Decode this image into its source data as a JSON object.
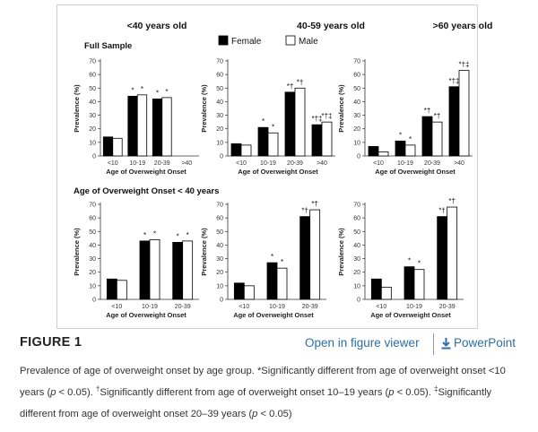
{
  "legend": [
    {
      "name": "Female",
      "color": "#000000"
    },
    {
      "name": "Male",
      "color": "#ffffff"
    }
  ],
  "row_titles": [
    "Full Sample",
    "Age of Overweight Onset < 40 years"
  ],
  "column_titles": [
    "<40 years old",
    "40-59 years old",
    ">60 years old"
  ],
  "chart_data": [
    {
      "type": "bar",
      "row": 0,
      "col": 0,
      "ylabel": "Prevalence (%)",
      "xlabel": "Age of Overweight Onset",
      "ylim": [
        0,
        70
      ],
      "yticks": [
        0,
        10,
        20,
        30,
        40,
        50,
        60,
        70
      ],
      "categories": [
        "<10",
        "10-19",
        "20-39",
        ">40"
      ],
      "series": [
        {
          "name": "Female",
          "values": [
            14,
            44,
            42,
            null
          ]
        },
        {
          "name": "Male",
          "values": [
            13,
            45,
            43,
            null
          ]
        }
      ],
      "annotations": [
        [
          "",
          ""
        ],
        [
          "*",
          "*"
        ],
        [
          "*",
          "*"
        ],
        [
          "",
          ""
        ]
      ]
    },
    {
      "type": "bar",
      "row": 0,
      "col": 1,
      "ylabel": "Prevalence (%)",
      "xlabel": "Age of Overweight Onset",
      "ylim": [
        0,
        70
      ],
      "yticks": [
        0,
        10,
        20,
        30,
        40,
        50,
        60,
        70
      ],
      "categories": [
        "<10",
        "10-19",
        "20-39",
        ">40"
      ],
      "series": [
        {
          "name": "Female",
          "values": [
            9,
            21,
            47,
            23
          ]
        },
        {
          "name": "Male",
          "values": [
            8,
            17,
            50,
            25
          ]
        }
      ],
      "annotations": [
        [
          "",
          ""
        ],
        [
          "*",
          "*"
        ],
        [
          "*†",
          "*†"
        ],
        [
          "*†‡",
          "*†‡"
        ]
      ]
    },
    {
      "type": "bar",
      "row": 0,
      "col": 2,
      "ylabel": "Prevalence (%)",
      "xlabel": "Age of Overweight Onset",
      "ylim": [
        0,
        70
      ],
      "yticks": [
        0,
        10,
        20,
        30,
        40,
        50,
        60,
        70
      ],
      "categories": [
        "<10",
        "10-19",
        "20-39",
        ">40"
      ],
      "series": [
        {
          "name": "Female",
          "values": [
            7,
            11,
            29,
            51
          ]
        },
        {
          "name": "Male",
          "values": [
            3,
            8,
            25,
            63
          ]
        }
      ],
      "annotations": [
        [
          "",
          ""
        ],
        [
          "*",
          "*"
        ],
        [
          "*†",
          "*†"
        ],
        [
          "*†‡",
          "*†‡"
        ]
      ]
    },
    {
      "type": "bar",
      "row": 1,
      "col": 0,
      "ylabel": "Prevalence (%)",
      "xlabel": "Age of Overweight Onset",
      "ylim": [
        0,
        70
      ],
      "yticks": [
        0,
        10,
        20,
        30,
        40,
        50,
        60,
        70
      ],
      "categories": [
        "<10",
        "10-19",
        "20-39"
      ],
      "series": [
        {
          "name": "Female",
          "values": [
            15,
            43,
            42
          ]
        },
        {
          "name": "Male",
          "values": [
            14,
            44,
            43
          ]
        }
      ],
      "annotations": [
        [
          "",
          ""
        ],
        [
          "*",
          "*"
        ],
        [
          "*",
          "*"
        ]
      ]
    },
    {
      "type": "bar",
      "row": 1,
      "col": 1,
      "ylabel": "Prevalence (%)",
      "xlabel": "Age of Overweight Onset",
      "ylim": [
        0,
        70
      ],
      "yticks": [
        0,
        10,
        20,
        30,
        40,
        50,
        60,
        70
      ],
      "categories": [
        "<10",
        "10-19",
        "20-39"
      ],
      "series": [
        {
          "name": "Female",
          "values": [
            12,
            27,
            61
          ]
        },
        {
          "name": "Male",
          "values": [
            10,
            23,
            66
          ]
        }
      ],
      "annotations": [
        [
          "",
          ""
        ],
        [
          "*",
          "*"
        ],
        [
          "*†",
          "*†"
        ]
      ]
    },
    {
      "type": "bar",
      "row": 1,
      "col": 2,
      "ylabel": "Prevalence (%)",
      "xlabel": "Age of Overweight Onset",
      "ylim": [
        0,
        70
      ],
      "yticks": [
        0,
        10,
        20,
        30,
        40,
        50,
        60,
        70
      ],
      "categories": [
        "<10",
        "10-19",
        "20-39"
      ],
      "series": [
        {
          "name": "Female",
          "values": [
            15,
            24,
            61
          ]
        },
        {
          "name": "Male",
          "values": [
            9,
            22,
            68
          ]
        }
      ],
      "annotations": [
        [
          "",
          ""
        ],
        [
          "*",
          "*"
        ],
        [
          "*†",
          "*†"
        ]
      ]
    }
  ],
  "figure": {
    "label": "FIGURE 1",
    "viewer_link": "Open in figure viewer",
    "powerpoint_link": "PowerPoint",
    "powerpoint_icon": "download-icon",
    "caption": {
      "part1": "Prevalence of age of overweight onset by age group. *Significantly different from age of overweight onset <10 years (",
      "p": "p",
      "part2": " < 0.05). ",
      "dagger": "†",
      "part3": "Significantly different from age of overweight onset 10–19 years (",
      "part4": " < 0.05). ",
      "ddagger": "‡",
      "part5": "Significantly different from age of overweight onset 20–39 years (",
      "part6": " < 0.05)"
    }
  }
}
